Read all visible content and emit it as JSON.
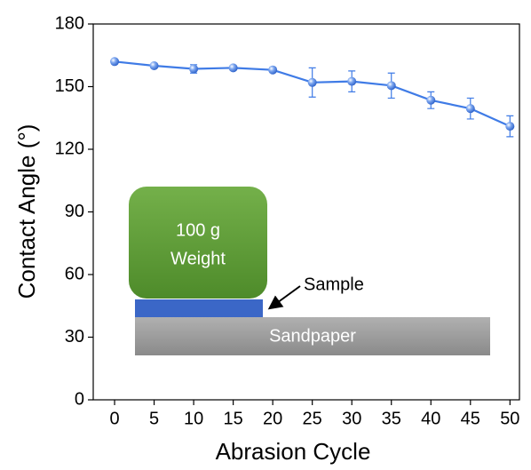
{
  "chart_data": {
    "type": "line",
    "x_label": "Abrasion Cycle",
    "y_label": "Contact Angle (°)",
    "x": [
      0,
      5,
      10,
      15,
      20,
      25,
      30,
      35,
      40,
      45,
      50
    ],
    "series": [
      {
        "color": "#3f7be6",
        "values": [
          162,
          160,
          158.5,
          159,
          158,
          152,
          152.5,
          150.5,
          143.5,
          139.5,
          131
        ],
        "errors": [
          1,
          1,
          2,
          1,
          1,
          7,
          5,
          6,
          4,
          5,
          5
        ]
      }
    ],
    "xlim": [
      -2.7,
      51.2
    ],
    "xticks": [
      0,
      5,
      10,
      15,
      20,
      25,
      30,
      35,
      40,
      45,
      50
    ],
    "ylim": [
      0,
      180
    ],
    "yticks": [
      0,
      30,
      60,
      90,
      120,
      150,
      180
    ],
    "annotations": [
      "100 g",
      "Weight",
      "Sample",
      "Sandpaper"
    ]
  }
}
